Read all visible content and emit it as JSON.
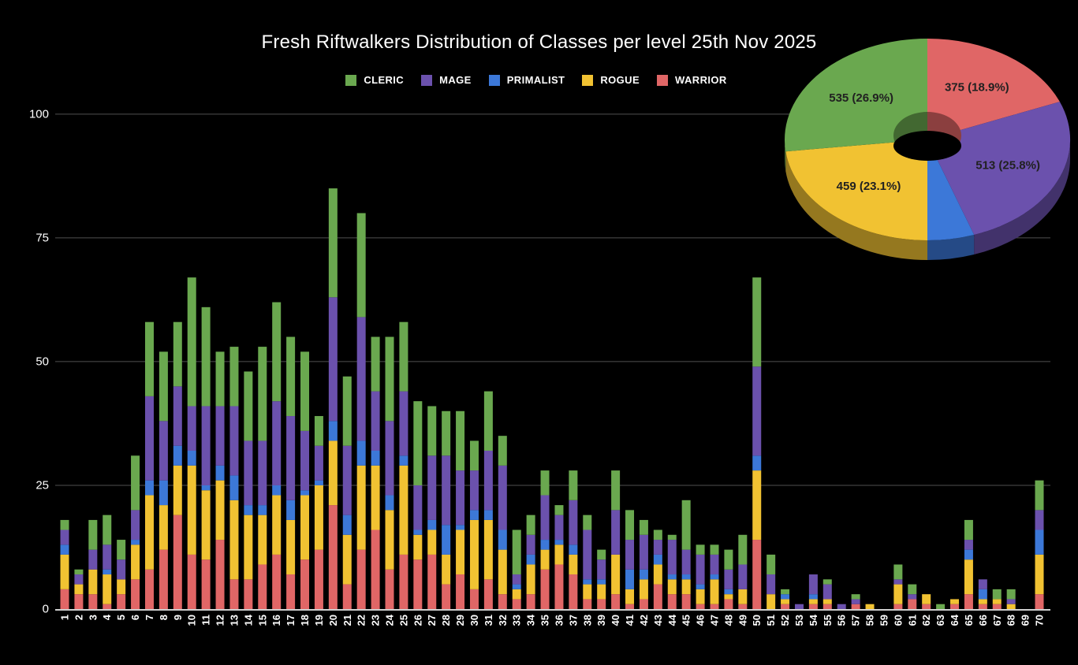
{
  "title": "Fresh Riftwalkers Distribution of Classes per level 25th Nov 2025",
  "background": "#000000",
  "text_color": "#ffffff",
  "gridline_color": "#4f4f4f",
  "baseline_color": "#cfcfcf",
  "pie_label_color": "#212121",
  "palette": {
    "CLERIC": "#6aa84f",
    "MAGE": "#6b51ad",
    "PRIMALIST": "#3c78d8",
    "ROGUE": "#f1c232",
    "WARRIOR": "#e06666"
  },
  "legend": {
    "items": [
      {
        "label": "CLERIC",
        "color": "#6aa84f"
      },
      {
        "label": "MAGE",
        "color": "#6b51ad"
      },
      {
        "label": "PRIMALIST",
        "color": "#3c78d8"
      },
      {
        "label": "ROGUE",
        "color": "#f1c232"
      },
      {
        "label": "WARRIOR",
        "color": "#e06666"
      }
    ]
  },
  "axes": {
    "yticks": [
      0,
      25,
      50,
      75,
      100
    ],
    "xlabel_rotation": -90
  },
  "chart_data": [
    {
      "type": "bar",
      "stacked": true,
      "title": "Fresh Riftwalkers Distribution of Classes per level 25th Nov 2025",
      "xlabel": "",
      "ylabel": "",
      "ylim": [
        0,
        100
      ],
      "yticks": [
        0,
        25,
        50,
        75,
        100
      ],
      "grid": true,
      "legend_position": "top",
      "categories": [
        1,
        2,
        3,
        4,
        5,
        6,
        7,
        8,
        9,
        10,
        11,
        12,
        13,
        14,
        15,
        16,
        17,
        18,
        19,
        20,
        21,
        22,
        23,
        24,
        25,
        26,
        27,
        28,
        29,
        30,
        31,
        32,
        33,
        34,
        35,
        36,
        37,
        38,
        39,
        40,
        41,
        42,
        43,
        44,
        45,
        46,
        47,
        48,
        49,
        50,
        51,
        52,
        53,
        54,
        55,
        56,
        57,
        58,
        59,
        60,
        61,
        62,
        63,
        64,
        65,
        66,
        67,
        68,
        69,
        70
      ],
      "series": [
        {
          "name": "WARRIOR",
          "color": "#e06666",
          "values": [
            4,
            3,
            3,
            1,
            3,
            6,
            8,
            12,
            19,
            11,
            10,
            14,
            6,
            6,
            9,
            11,
            7,
            10,
            12,
            21,
            5,
            12,
            16,
            8,
            11,
            10,
            11,
            5,
            7,
            4,
            6,
            3,
            2,
            3,
            8,
            9,
            7,
            2,
            2,
            3,
            1,
            2,
            5,
            3,
            3,
            1,
            1,
            2,
            1,
            14,
            0,
            1,
            0,
            1,
            1,
            0,
            1,
            0,
            0,
            1,
            2,
            1,
            0,
            1,
            3,
            1,
            1,
            0,
            0,
            3
          ]
        },
        {
          "name": "ROGUE",
          "color": "#f1c232",
          "values": [
            7,
            2,
            5,
            6,
            3,
            7,
            15,
            9,
            10,
            18,
            14,
            12,
            16,
            13,
            10,
            12,
            11,
            13,
            13,
            13,
            10,
            17,
            13,
            12,
            18,
            5,
            5,
            6,
            9,
            14,
            12,
            9,
            2,
            6,
            4,
            4,
            4,
            3,
            3,
            8,
            3,
            4,
            4,
            3,
            3,
            3,
            5,
            1,
            3,
            14,
            3,
            1,
            0,
            1,
            1,
            0,
            0,
            1,
            0,
            4,
            0,
            2,
            0,
            1,
            7,
            1,
            1,
            1,
            0,
            8
          ]
        },
        {
          "name": "PRIMALIST",
          "color": "#3c78d8",
          "values": [
            2,
            0,
            0,
            1,
            0,
            1,
            3,
            5,
            4,
            3,
            1,
            3,
            5,
            2,
            2,
            2,
            4,
            1,
            1,
            4,
            4,
            5,
            3,
            3,
            2,
            1,
            2,
            6,
            1,
            2,
            2,
            4,
            1,
            2,
            2,
            1,
            2,
            1,
            1,
            0,
            4,
            2,
            2,
            1,
            1,
            1,
            1,
            1,
            0,
            3,
            0,
            1,
            0,
            1,
            0,
            0,
            0,
            0,
            0,
            0,
            0,
            0,
            0,
            0,
            2,
            2,
            0,
            0,
            0,
            5
          ]
        },
        {
          "name": "MAGE",
          "color": "#6b51ad",
          "values": [
            3,
            2,
            4,
            5,
            4,
            6,
            17,
            12,
            12,
            9,
            16,
            12,
            14,
            13,
            13,
            17,
            17,
            12,
            7,
            25,
            14,
            25,
            12,
            15,
            13,
            9,
            13,
            14,
            11,
            8,
            12,
            13,
            2,
            4,
            9,
            5,
            9,
            10,
            4,
            9,
            6,
            7,
            3,
            7,
            5,
            6,
            4,
            4,
            5,
            18,
            4,
            0,
            1,
            4,
            3,
            1,
            1,
            0,
            0,
            1,
            1,
            0,
            0,
            0,
            2,
            2,
            0,
            1,
            0,
            4
          ]
        },
        {
          "name": "CLERIC",
          "color": "#6aa84f",
          "values": [
            2,
            1,
            6,
            6,
            4,
            11,
            15,
            14,
            13,
            26,
            20,
            11,
            12,
            14,
            19,
            20,
            16,
            16,
            6,
            22,
            14,
            21,
            11,
            17,
            14,
            17,
            10,
            9,
            12,
            6,
            12,
            6,
            9,
            4,
            5,
            2,
            6,
            3,
            2,
            8,
            6,
            3,
            2,
            1,
            10,
            2,
            2,
            4,
            6,
            18,
            4,
            1,
            0,
            0,
            1,
            0,
            1,
            0,
            0,
            3,
            2,
            0,
            1,
            0,
            4,
            0,
            2,
            2,
            0,
            6
          ]
        }
      ]
    },
    {
      "type": "pie",
      "donut": true,
      "three_d": true,
      "start": "top",
      "direction": "clockwise",
      "slices": [
        {
          "name": "WARRIOR",
          "value": 375,
          "pct": 18.9,
          "label": "375 (18.9%)",
          "color": "#e06666"
        },
        {
          "name": "MAGE",
          "value": 513,
          "pct": 25.8,
          "label": "513 (25.8%)",
          "color": "#6b51ad"
        },
        {
          "name": "PRIMALIST",
          "pct": 5.3,
          "label": "",
          "color": "#3c78d8"
        },
        {
          "name": "ROGUE",
          "value": 459,
          "pct": 23.1,
          "label": "459 (23.1%)",
          "color": "#f1c232"
        },
        {
          "name": "CLERIC",
          "value": 535,
          "pct": 26.9,
          "label": "535 (26.9%)",
          "color": "#6aa84f"
        }
      ]
    }
  ]
}
